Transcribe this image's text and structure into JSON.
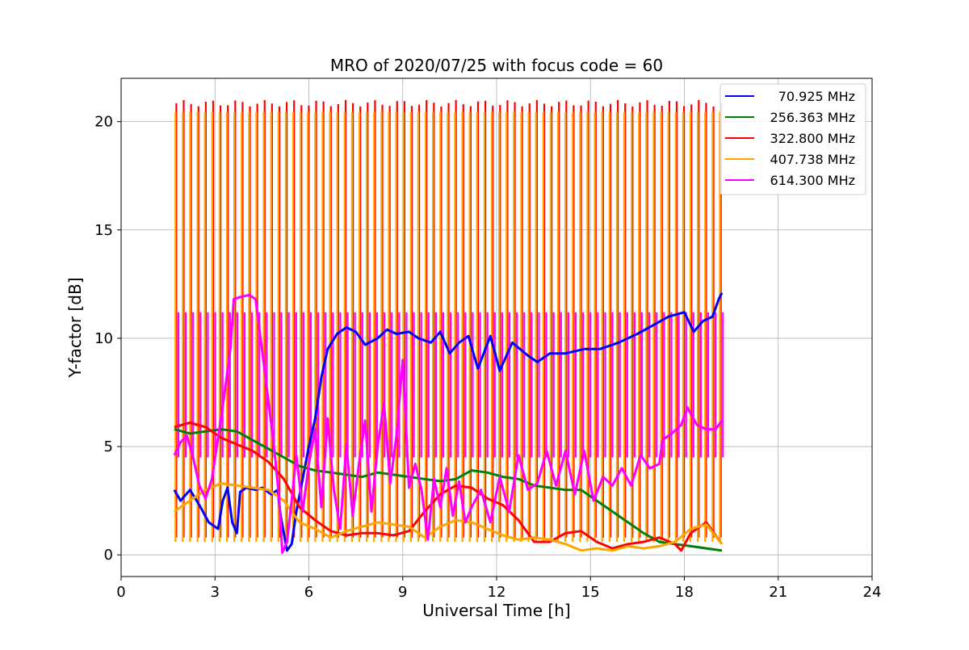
{
  "chart_data": {
    "type": "line",
    "title": "MRO of 2020/07/25 with focus code = 60",
    "xlabel": "Universal Time [h]",
    "ylabel": "Y-factor [dB]",
    "xlim": [
      0,
      24
    ],
    "ylim": [
      -1,
      22
    ],
    "xticks": [
      0,
      3,
      6,
      9,
      12,
      15,
      18,
      21,
      24
    ],
    "yticks": [
      0,
      5,
      10,
      15,
      20
    ],
    "grid": true,
    "legend_position": "top-right",
    "calibration_pulses": {
      "start": 1.75,
      "end": 19.15,
      "count": 75
    },
    "series": [
      {
        "name": "70.925 MHz",
        "color": "#0000ff",
        "points": [
          [
            1.7,
            3.0
          ],
          [
            1.9,
            2.5
          ],
          [
            2.2,
            3.0
          ],
          [
            2.5,
            2.3
          ],
          [
            2.8,
            1.5
          ],
          [
            3.1,
            1.2
          ],
          [
            3.25,
            2.5
          ],
          [
            3.4,
            3.1
          ],
          [
            3.55,
            1.5
          ],
          [
            3.7,
            1.0
          ],
          [
            3.8,
            2.9
          ],
          [
            4.0,
            3.1
          ],
          [
            4.3,
            3.0
          ],
          [
            4.5,
            3.1
          ],
          [
            4.8,
            2.8
          ],
          [
            5.0,
            3.0
          ],
          [
            5.1,
            1.8
          ],
          [
            5.3,
            0.2
          ],
          [
            5.45,
            0.5
          ],
          [
            5.6,
            2.0
          ],
          [
            5.8,
            3.5
          ],
          [
            6.0,
            5.0
          ],
          [
            6.2,
            6.3
          ],
          [
            6.4,
            8.2
          ],
          [
            6.6,
            9.5
          ],
          [
            6.9,
            10.2
          ],
          [
            7.2,
            10.5
          ],
          [
            7.5,
            10.3
          ],
          [
            7.8,
            9.7
          ],
          [
            8.2,
            10.0
          ],
          [
            8.5,
            10.4
          ],
          [
            8.8,
            10.2
          ],
          [
            9.2,
            10.3
          ],
          [
            9.5,
            10.0
          ],
          [
            9.9,
            9.8
          ],
          [
            10.2,
            10.3
          ],
          [
            10.5,
            9.3
          ],
          [
            10.8,
            9.8
          ],
          [
            11.1,
            10.1
          ],
          [
            11.4,
            8.6
          ],
          [
            11.8,
            10.1
          ],
          [
            12.1,
            8.5
          ],
          [
            12.5,
            9.8
          ],
          [
            13.0,
            9.2
          ],
          [
            13.3,
            8.9
          ],
          [
            13.7,
            9.3
          ],
          [
            14.2,
            9.3
          ],
          [
            14.8,
            9.5
          ],
          [
            15.3,
            9.5
          ],
          [
            15.9,
            9.8
          ],
          [
            16.5,
            10.2
          ],
          [
            17.0,
            10.6
          ],
          [
            17.5,
            11.0
          ],
          [
            18.0,
            11.2
          ],
          [
            18.3,
            10.3
          ],
          [
            18.6,
            10.8
          ],
          [
            18.9,
            11.0
          ],
          [
            19.1,
            11.8
          ],
          [
            19.2,
            12.1
          ]
        ]
      },
      {
        "name": "256.363 MHz",
        "color": "#008000",
        "points": [
          [
            1.7,
            5.8
          ],
          [
            2.2,
            5.6
          ],
          [
            2.7,
            5.7
          ],
          [
            3.2,
            5.8
          ],
          [
            3.7,
            5.7
          ],
          [
            4.2,
            5.3
          ],
          [
            4.7,
            4.9
          ],
          [
            5.2,
            4.5
          ],
          [
            5.7,
            4.1
          ],
          [
            6.2,
            3.9
          ],
          [
            6.7,
            3.8
          ],
          [
            7.2,
            3.7
          ],
          [
            7.7,
            3.6
          ],
          [
            8.2,
            3.8
          ],
          [
            8.7,
            3.7
          ],
          [
            9.2,
            3.6
          ],
          [
            9.7,
            3.5
          ],
          [
            10.2,
            3.4
          ],
          [
            10.7,
            3.5
          ],
          [
            11.2,
            3.9
          ],
          [
            11.7,
            3.8
          ],
          [
            12.2,
            3.6
          ],
          [
            12.7,
            3.5
          ],
          [
            13.2,
            3.2
          ],
          [
            13.7,
            3.1
          ],
          [
            14.2,
            3.0
          ],
          [
            14.7,
            3.0
          ],
          [
            15.2,
            2.5
          ],
          [
            15.7,
            2.0
          ],
          [
            16.2,
            1.5
          ],
          [
            16.7,
            1.0
          ],
          [
            17.2,
            0.6
          ],
          [
            17.7,
            0.5
          ],
          [
            18.2,
            0.4
          ],
          [
            18.7,
            0.3
          ],
          [
            19.2,
            0.2
          ]
        ]
      },
      {
        "name": "322.800 MHz",
        "color": "#ff0000",
        "points": [
          [
            1.7,
            5.9
          ],
          [
            2.2,
            6.1
          ],
          [
            2.7,
            5.9
          ],
          [
            3.2,
            5.4
          ],
          [
            3.7,
            5.1
          ],
          [
            4.2,
            4.8
          ],
          [
            4.7,
            4.3
          ],
          [
            5.2,
            3.5
          ],
          [
            5.7,
            2.2
          ],
          [
            6.2,
            1.6
          ],
          [
            6.7,
            1.1
          ],
          [
            7.2,
            0.9
          ],
          [
            7.7,
            1.0
          ],
          [
            8.2,
            1.0
          ],
          [
            8.7,
            0.9
          ],
          [
            9.2,
            1.1
          ],
          [
            9.7,
            2.0
          ],
          [
            10.2,
            2.8
          ],
          [
            10.7,
            3.2
          ],
          [
            11.2,
            3.1
          ],
          [
            11.7,
            2.6
          ],
          [
            12.2,
            2.3
          ],
          [
            12.7,
            1.6
          ],
          [
            13.2,
            0.6
          ],
          [
            13.7,
            0.6
          ],
          [
            14.2,
            1.0
          ],
          [
            14.7,
            1.1
          ],
          [
            15.2,
            0.6
          ],
          [
            15.7,
            0.3
          ],
          [
            16.2,
            0.5
          ],
          [
            16.7,
            0.6
          ],
          [
            17.2,
            0.8
          ],
          [
            17.7,
            0.5
          ],
          [
            17.9,
            0.2
          ],
          [
            18.2,
            1.0
          ],
          [
            18.7,
            1.5
          ],
          [
            19.2,
            0.5
          ]
        ]
      },
      {
        "name": "407.738 MHz",
        "color": "#ffa500",
        "points": [
          [
            1.7,
            2.0
          ],
          [
            2.2,
            2.5
          ],
          [
            2.7,
            3.0
          ],
          [
            3.2,
            3.3
          ],
          [
            3.7,
            3.2
          ],
          [
            4.2,
            3.1
          ],
          [
            4.7,
            3.0
          ],
          [
            5.2,
            2.5
          ],
          [
            5.7,
            1.5
          ],
          [
            6.2,
            1.2
          ],
          [
            6.7,
            0.8
          ],
          [
            7.2,
            1.1
          ],
          [
            7.7,
            1.3
          ],
          [
            8.2,
            1.5
          ],
          [
            8.7,
            1.4
          ],
          [
            9.2,
            1.3
          ],
          [
            9.7,
            0.8
          ],
          [
            10.2,
            1.3
          ],
          [
            10.7,
            1.6
          ],
          [
            11.2,
            1.5
          ],
          [
            11.7,
            1.2
          ],
          [
            12.2,
            0.9
          ],
          [
            12.7,
            0.7
          ],
          [
            13.2,
            0.8
          ],
          [
            13.7,
            0.7
          ],
          [
            14.2,
            0.5
          ],
          [
            14.7,
            0.2
          ],
          [
            15.2,
            0.3
          ],
          [
            15.7,
            0.2
          ],
          [
            16.2,
            0.4
          ],
          [
            16.7,
            0.3
          ],
          [
            17.2,
            0.4
          ],
          [
            17.7,
            0.6
          ],
          [
            18.2,
            1.2
          ],
          [
            18.7,
            1.4
          ],
          [
            19.2,
            0.5
          ]
        ]
      },
      {
        "name": "614.300 MHz",
        "color": "#ff00ff",
        "points": [
          [
            1.7,
            4.6
          ],
          [
            1.9,
            5.2
          ],
          [
            2.1,
            5.5
          ],
          [
            2.3,
            4.5
          ],
          [
            2.5,
            3.2
          ],
          [
            2.7,
            2.6
          ],
          [
            2.9,
            3.5
          ],
          [
            3.1,
            5.4
          ],
          [
            3.3,
            7.4
          ],
          [
            3.5,
            9.6
          ],
          [
            3.6,
            11.8
          ],
          [
            3.8,
            11.9
          ],
          [
            4.1,
            12.0
          ],
          [
            4.3,
            11.8
          ],
          [
            4.5,
            9.5
          ],
          [
            4.7,
            7.2
          ],
          [
            4.9,
            4.8
          ],
          [
            5.05,
            2.6
          ],
          [
            5.15,
            0.1
          ],
          [
            5.3,
            0.6
          ],
          [
            5.45,
            2.5
          ],
          [
            5.6,
            4.6
          ],
          [
            5.8,
            2.0
          ],
          [
            6.0,
            4.2
          ],
          [
            6.2,
            5.8
          ],
          [
            6.4,
            2.2
          ],
          [
            6.6,
            6.3
          ],
          [
            6.8,
            3.0
          ],
          [
            7.0,
            1.2
          ],
          [
            7.2,
            5.1
          ],
          [
            7.4,
            1.8
          ],
          [
            7.6,
            4.2
          ],
          [
            7.8,
            6.2
          ],
          [
            8.0,
            2.0
          ],
          [
            8.2,
            5.0
          ],
          [
            8.4,
            7.0
          ],
          [
            8.6,
            3.3
          ],
          [
            8.8,
            5.5
          ],
          [
            9.0,
            9.0
          ],
          [
            9.2,
            3.1
          ],
          [
            9.4,
            4.2
          ],
          [
            9.6,
            3.0
          ],
          [
            9.8,
            0.7
          ],
          [
            10.0,
            3.5
          ],
          [
            10.2,
            2.2
          ],
          [
            10.4,
            4.0
          ],
          [
            10.6,
            1.8
          ],
          [
            10.8,
            3.4
          ],
          [
            11.0,
            1.5
          ],
          [
            11.2,
            2.2
          ],
          [
            11.5,
            3.0
          ],
          [
            11.8,
            1.5
          ],
          [
            12.1,
            3.6
          ],
          [
            12.4,
            2.0
          ],
          [
            12.7,
            4.6
          ],
          [
            13.0,
            3.0
          ],
          [
            13.3,
            3.3
          ],
          [
            13.6,
            4.8
          ],
          [
            13.9,
            3.2
          ],
          [
            14.2,
            4.8
          ],
          [
            14.5,
            2.8
          ],
          [
            14.8,
            4.8
          ],
          [
            15.1,
            2.5
          ],
          [
            15.4,
            3.6
          ],
          [
            15.7,
            3.2
          ],
          [
            16.0,
            4.0
          ],
          [
            16.3,
            3.2
          ],
          [
            16.6,
            4.6
          ],
          [
            16.9,
            4.0
          ],
          [
            17.2,
            4.2
          ],
          [
            17.3,
            5.3
          ],
          [
            17.6,
            5.6
          ],
          [
            17.9,
            6.0
          ],
          [
            18.1,
            6.8
          ],
          [
            18.4,
            6.0
          ],
          [
            18.7,
            5.8
          ],
          [
            19.0,
            5.8
          ],
          [
            19.2,
            6.2
          ]
        ]
      }
    ]
  }
}
